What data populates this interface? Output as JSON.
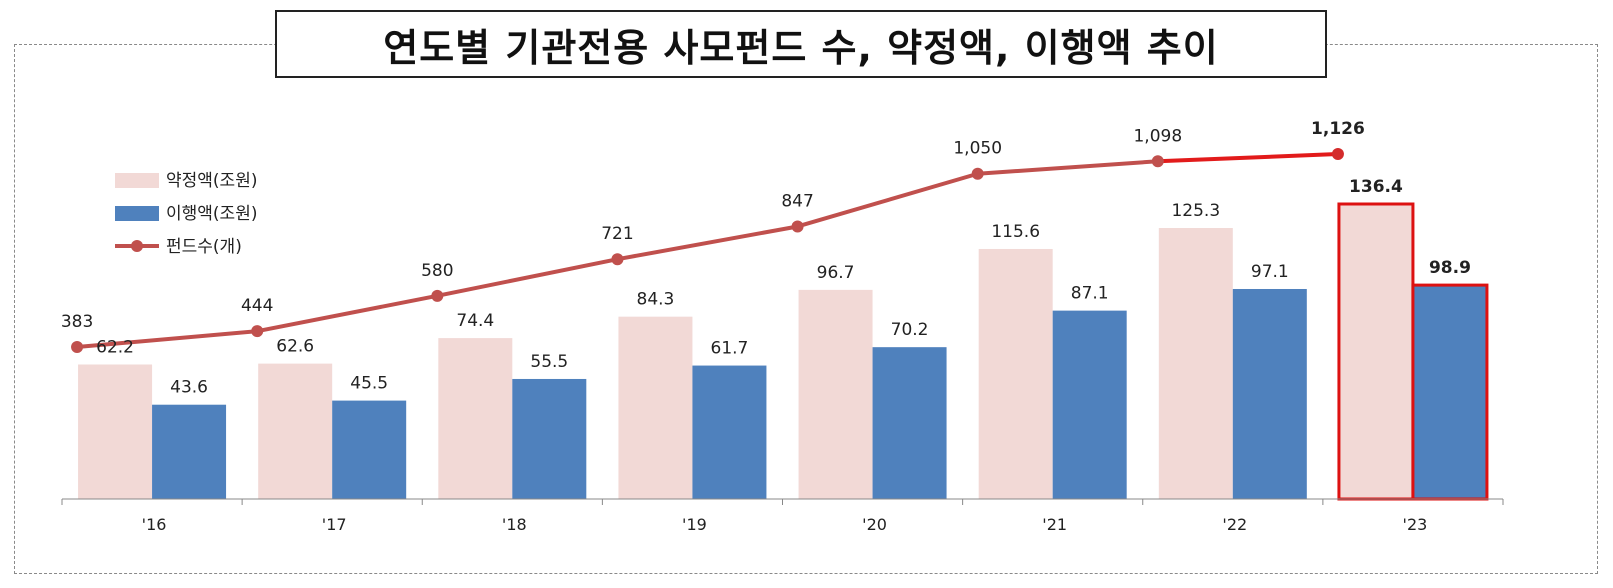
{
  "title": "연도별 기관전용 사모펀드 수, 약정액, 이행액 추이",
  "chart_data": {
    "type": "bar",
    "categories": [
      "'16",
      "'17",
      "'18",
      "'19",
      "'20",
      "'21",
      "'22",
      "'23"
    ],
    "series": [
      {
        "name": "약정액(조원)",
        "kind": "bar",
        "color": "#f2d9d6",
        "values": [
          62.2,
          62.6,
          74.4,
          84.3,
          96.7,
          115.6,
          125.3,
          136.4
        ],
        "labels": [
          "62.2",
          "62.6",
          "74.4",
          "84.3",
          "96.7",
          "115.6",
          "125.3",
          "136.4"
        ]
      },
      {
        "name": "이행액(조원)",
        "kind": "bar",
        "color": "#4f81bd",
        "values": [
          43.6,
          45.5,
          55.5,
          61.7,
          70.2,
          87.1,
          97.1,
          98.9
        ],
        "labels": [
          "43.6",
          "45.5",
          "55.5",
          "61.7",
          "70.2",
          "87.1",
          "97.1",
          "98.9"
        ]
      },
      {
        "name": "펀드수(개)",
        "kind": "line",
        "color": "#c0504d",
        "values": [
          383,
          444,
          580,
          721,
          847,
          1050,
          1098,
          1126
        ],
        "labels": [
          "383",
          "444",
          "580",
          "721",
          "847",
          "1,050",
          "1,098",
          "1,126"
        ]
      }
    ],
    "highlight": {
      "category": "'23",
      "border_color": "#dd1111"
    },
    "legend_position": "left",
    "grid": false
  }
}
